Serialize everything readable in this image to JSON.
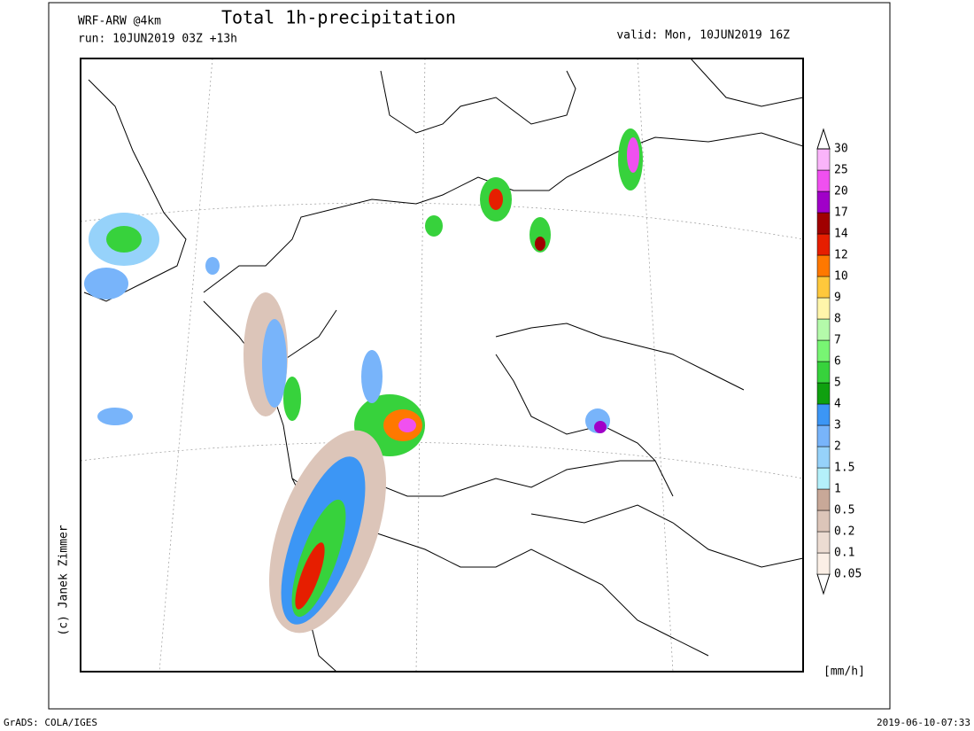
{
  "header": {
    "model": "WRF-ARW @4km",
    "title": "Total 1h-precipitation",
    "run": "run: 10JUN2019 03Z +13h",
    "valid": "valid: Mon, 10JUN2019 16Z"
  },
  "legend": {
    "levels": [
      0.05,
      0.1,
      0.2,
      0.5,
      1,
      1.5,
      2,
      3,
      4,
      5,
      6,
      7,
      8,
      9,
      10,
      12,
      14,
      17,
      20,
      25,
      30
    ],
    "colors": [
      "#fbefe6",
      "#ecdcd2",
      "#dcc5b9",
      "#c8a898",
      "#b4f0fa",
      "#96d2fa",
      "#78b4fa",
      "#3c96f5",
      "#0fa00f",
      "#37d23c",
      "#78f573",
      "#b4faaa",
      "#fff5aa",
      "#ffc83c",
      "#ff7800",
      "#e61e00",
      "#a00000",
      "#a000c8",
      "#f050f0",
      "#fab4fa"
    ],
    "unit": "[mm/h]"
  },
  "credit": "(c) Janek Zimmer",
  "footer": {
    "left": "GrADS: COLA/IGES",
    "right": "2019-06-10-07:33"
  }
}
